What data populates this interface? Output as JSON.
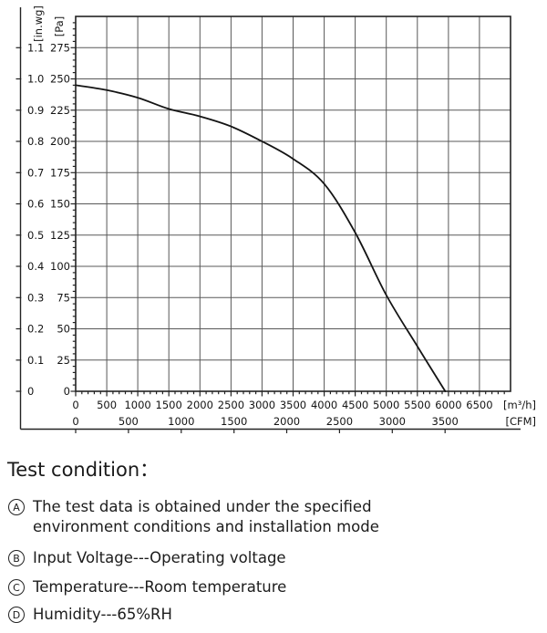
{
  "chart_data": {
    "type": "line",
    "title": "",
    "grid": true,
    "legend": false,
    "x_axis": {
      "primary_unit": "[m³/h]",
      "primary_ticks": [
        0,
        500,
        1000,
        1500,
        2000,
        2500,
        3000,
        3500,
        4000,
        4500,
        5000,
        5500,
        6000,
        6500
      ],
      "primary_minor_step": 100,
      "primary_plot_max": 7000,
      "secondary_unit": "[CFM]",
      "secondary_ticks": [
        0,
        500,
        1000,
        1500,
        2000,
        2500,
        3000,
        3500
      ],
      "secondary_to_primary_factor": 1.699
    },
    "y_axis": {
      "primary_unit": "[Pa]",
      "primary_ticks": [
        0,
        25,
        50,
        75,
        100,
        125,
        150,
        175,
        200,
        225,
        250,
        275
      ],
      "primary_minor_step": 5,
      "primary_plot_max": 300,
      "secondary_unit": "[in.wg]",
      "secondary_tick_labels": [
        "0",
        "0.1",
        "0.2",
        "0.3",
        "0.4",
        "0.5",
        "0.6",
        "0.7",
        "0.8",
        "0.9",
        "1.0",
        "1.1"
      ],
      "secondary_to_primary_factor": 250
    },
    "series": [
      {
        "name": "static-pressure-curve",
        "points": [
          [
            0,
            245
          ],
          [
            500,
            241
          ],
          [
            1000,
            235
          ],
          [
            1500,
            226
          ],
          [
            2000,
            220
          ],
          [
            2500,
            212
          ],
          [
            3000,
            200
          ],
          [
            3500,
            186
          ],
          [
            4000,
            166
          ],
          [
            4500,
            127
          ],
          [
            5000,
            77
          ],
          [
            5500,
            36
          ],
          [
            5950,
            0
          ]
        ]
      }
    ]
  },
  "test_conditions": {
    "title": "Test condition：",
    "items": [
      {
        "key": "A",
        "lines": [
          "The test data is obtained under the specified",
          "environment conditions and installation mode"
        ]
      },
      {
        "key": "B",
        "lines": [
          "Input Voltage---Operating voltage"
        ]
      },
      {
        "key": "C",
        "lines": [
          "Temperature---Room temperature"
        ]
      },
      {
        "key": "D",
        "lines": [
          "Humidity---65%RH"
        ]
      }
    ]
  },
  "colors": {
    "background": "#ffffff",
    "grid": "#585858",
    "axis": "#232323",
    "curve": "#141414",
    "text": "#1a1a1a"
  }
}
